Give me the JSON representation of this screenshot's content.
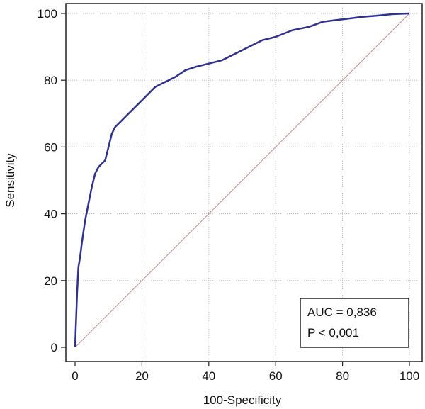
{
  "chart_data": {
    "type": "line",
    "title": "",
    "xlabel": "100-Specificity",
    "ylabel": "Sensitivity",
    "xlim": [
      0,
      100
    ],
    "ylim": [
      0,
      100
    ],
    "xticks": [
      0,
      20,
      40,
      60,
      80,
      100
    ],
    "yticks": [
      0,
      20,
      40,
      60,
      80,
      100
    ],
    "grid": true,
    "series": [
      {
        "name": "ROC curve",
        "color": "#2e3192",
        "x": [
          0,
          0.3,
          0.6,
          1,
          1.5,
          2,
          3,
          4,
          5,
          6,
          7,
          8,
          9,
          10,
          11,
          12,
          13,
          14,
          16,
          18,
          20,
          22,
          24,
          26,
          28,
          30,
          33,
          36,
          40,
          44,
          48,
          52,
          56,
          60,
          65,
          70,
          74,
          78,
          82,
          86,
          90,
          95,
          100
        ],
        "y": [
          0,
          8,
          16,
          24,
          27,
          31,
          38,
          43,
          48,
          52,
          54,
          55,
          56,
          60,
          64,
          66,
          67,
          68,
          70,
          72,
          74,
          76,
          78,
          79,
          80,
          81,
          83,
          84,
          85,
          86,
          88,
          90,
          92,
          93,
          95,
          96,
          97.5,
          98,
          98.5,
          99,
          99.3,
          99.8,
          100
        ]
      },
      {
        "name": "Reference line",
        "color": "#c48a8a",
        "x": [
          0,
          100
        ],
        "y": [
          0,
          100
        ]
      }
    ],
    "annotations": {
      "line1": "AUC = 0,836",
      "line2": "P < 0,001"
    }
  }
}
